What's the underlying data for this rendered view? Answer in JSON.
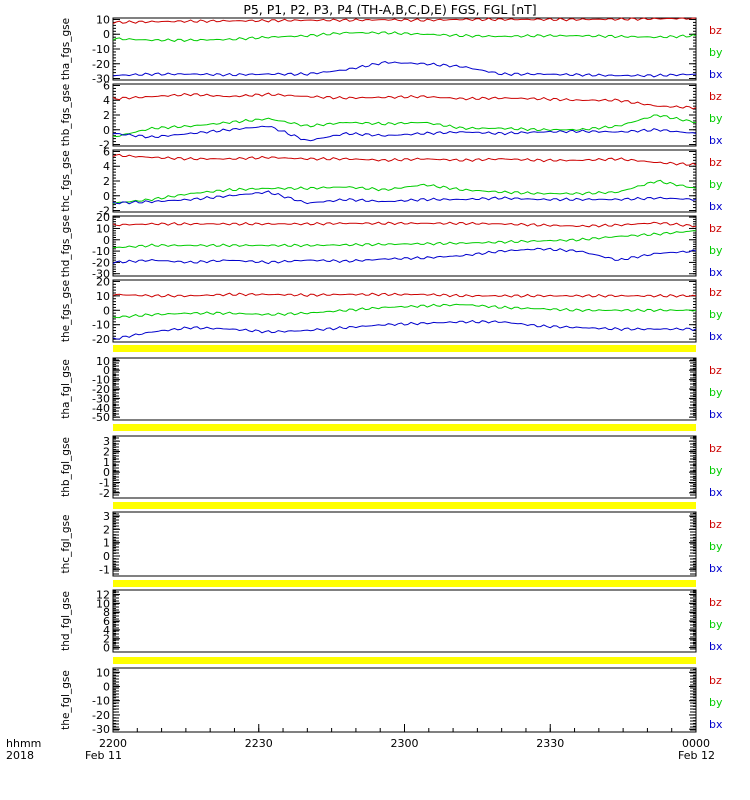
{
  "chart_data": {
    "title": "P5, P1, P2, P3, P4 (TH-A,B,C,D,E) FGS, FGL [nT]",
    "type": "line",
    "time_axis": {
      "tick_labels": [
        "2200",
        "2230",
        "2300",
        "2330",
        "0000"
      ],
      "date_labels": [
        "Feb 11",
        "Feb 12"
      ],
      "row_labels": [
        "hhmm",
        "2018"
      ]
    },
    "legend": [
      {
        "name": "bz",
        "color": "#cc0000"
      },
      {
        "name": "by",
        "color": "#00cc00"
      },
      {
        "name": "bx",
        "color": "#0000cc"
      }
    ],
    "panels": [
      {
        "ylabel": "tha_fgs_gse",
        "ylim": [
          -31,
          11
        ],
        "yticks": [
          10,
          0,
          -10,
          -20,
          -30
        ],
        "series": [
          {
            "name": "bz",
            "values": [
              8,
              8.5,
              8.8,
              9,
              9.2,
              9.5,
              9.5,
              9.8,
              9.5,
              10,
              10,
              10,
              10,
              10.2,
              10.5,
              10.8
            ]
          },
          {
            "name": "by",
            "values": [
              -3,
              -4,
              -4,
              -3.5,
              -2,
              -1,
              1,
              1,
              0,
              -1,
              -1.5,
              -1,
              -1,
              -1.5,
              -2,
              -1
            ]
          },
          {
            "name": "bx",
            "values": [
              -28,
              -27,
              -27,
              -27.5,
              -27,
              -27,
              -24,
              -19,
              -20,
              -22,
              -27,
              -27,
              -27.5,
              -28,
              -28,
              -27
            ]
          }
        ]
      },
      {
        "ylabel": "thb_fgs_gse",
        "ylim": [
          -2.2,
          6.2
        ],
        "yticks": [
          6,
          4,
          2,
          0,
          -2
        ],
        "series": [
          {
            "name": "bz",
            "values": [
              4.2,
              4.5,
              4.8,
              4.5,
              4.8,
              4.5,
              4.3,
              4.4,
              4.5,
              4.2,
              4.3,
              4.2,
              4.0,
              4.0,
              3.2,
              3.0
            ]
          },
          {
            "name": "by",
            "values": [
              -1,
              0.2,
              0.5,
              1.0,
              1.5,
              0.5,
              1.0,
              0.8,
              1.0,
              0.2,
              0.2,
              0.0,
              0.0,
              0.5,
              2.0,
              1.0
            ]
          },
          {
            "name": "bx",
            "values": [
              -0.5,
              -1,
              -0.5,
              0,
              0.5,
              -1.5,
              -0.5,
              -0.8,
              -0.5,
              -0.3,
              -0.5,
              -0.3,
              -0.2,
              -0.3,
              0,
              -0.5
            ]
          }
        ]
      },
      {
        "ylabel": "thc_fgs_gse",
        "ylim": [
          -2.2,
          6.2
        ],
        "yticks": [
          6,
          4,
          2,
          0,
          -2
        ],
        "series": [
          {
            "name": "bz",
            "values": [
              5.5,
              5.2,
              5.0,
              5.0,
              5.2,
              5.0,
              5.0,
              4.8,
              5.0,
              4.8,
              5.0,
              4.8,
              4.8,
              5.0,
              4.5,
              4.2
            ]
          },
          {
            "name": "by",
            "values": [
              -1,
              -0.5,
              0.3,
              0.8,
              1.0,
              1.0,
              1.2,
              0.8,
              1.5,
              0.8,
              0.5,
              0.3,
              0.3,
              0.5,
              2.0,
              1.0
            ]
          },
          {
            "name": "bx",
            "values": [
              -1,
              -0.8,
              -0.5,
              0,
              0.5,
              -1,
              -0.5,
              -0.8,
              -0.5,
              -0.5,
              -0.3,
              -0.5,
              -0.5,
              -0.5,
              -0.3,
              -0.5
            ]
          }
        ]
      },
      {
        "ylabel": "thd_fgs_gse",
        "ylim": [
          -32,
          21
        ],
        "yticks": [
          20,
          10,
          0,
          -10,
          -20,
          -30
        ],
        "series": [
          {
            "name": "bz",
            "values": [
              13,
              14,
              14,
              14,
              14,
              14,
              14.5,
              14.5,
              14.5,
              14.5,
              14,
              13,
              12,
              13,
              15,
              12
            ]
          },
          {
            "name": "by",
            "values": [
              -7,
              -5,
              -5,
              -5,
              -5,
              -5,
              -4.5,
              -4,
              -3.5,
              -3,
              -2,
              -1,
              0,
              3,
              5,
              8
            ]
          },
          {
            "name": "bx",
            "values": [
              -20,
              -18,
              -20,
              -18,
              -20,
              -18,
              -19,
              -17,
              -16,
              -14,
              -10,
              -8,
              -10,
              -18,
              -12,
              -10
            ]
          }
        ]
      },
      {
        "ylabel": "the_fgs_gse",
        "ylim": [
          -22,
          21
        ],
        "yticks": [
          20,
          10,
          0,
          -10,
          -20
        ],
        "series": [
          {
            "name": "bz",
            "values": [
              11,
              10,
              10,
              11,
              11,
              10.5,
              11,
              11,
              11,
              10,
              10,
              10,
              10,
              10,
              10,
              10
            ]
          },
          {
            "name": "by",
            "values": [
              -5,
              -3,
              -2,
              -2,
              -3,
              -2,
              0,
              2,
              3,
              4,
              2,
              1,
              0,
              0,
              0,
              0
            ]
          },
          {
            "name": "bx",
            "values": [
              -20,
              -15,
              -12,
              -13,
              -15,
              -14,
              -12,
              -10,
              -9,
              -8,
              -8,
              -11,
              -12,
              -13,
              -13,
              -13
            ]
          }
        ]
      },
      {
        "ylabel": "tha_fgl_gse",
        "ylim": [
          -53,
          13
        ],
        "yticks": [
          10,
          0,
          -10,
          -20,
          -30,
          -40,
          -50
        ]
      },
      {
        "ylabel": "thb_fgl_gse",
        "ylim": [
          -2.5,
          3.5
        ],
        "yticks": [
          3,
          2,
          1,
          0,
          -1,
          -2
        ]
      },
      {
        "ylabel": "thc_fgl_gse",
        "ylim": [
          -1.5,
          3.3
        ],
        "yticks": [
          3,
          2,
          1,
          0,
          -1
        ]
      },
      {
        "ylabel": "thd_fgl_gse",
        "ylim": [
          -1,
          13
        ],
        "yticks": [
          12,
          10,
          8,
          6,
          4,
          2,
          0
        ]
      },
      {
        "ylabel": "the_fgl_gse",
        "ylim": [
          -32,
          13
        ],
        "yticks": [
          10,
          0,
          -10,
          -20,
          -30
        ]
      }
    ]
  }
}
